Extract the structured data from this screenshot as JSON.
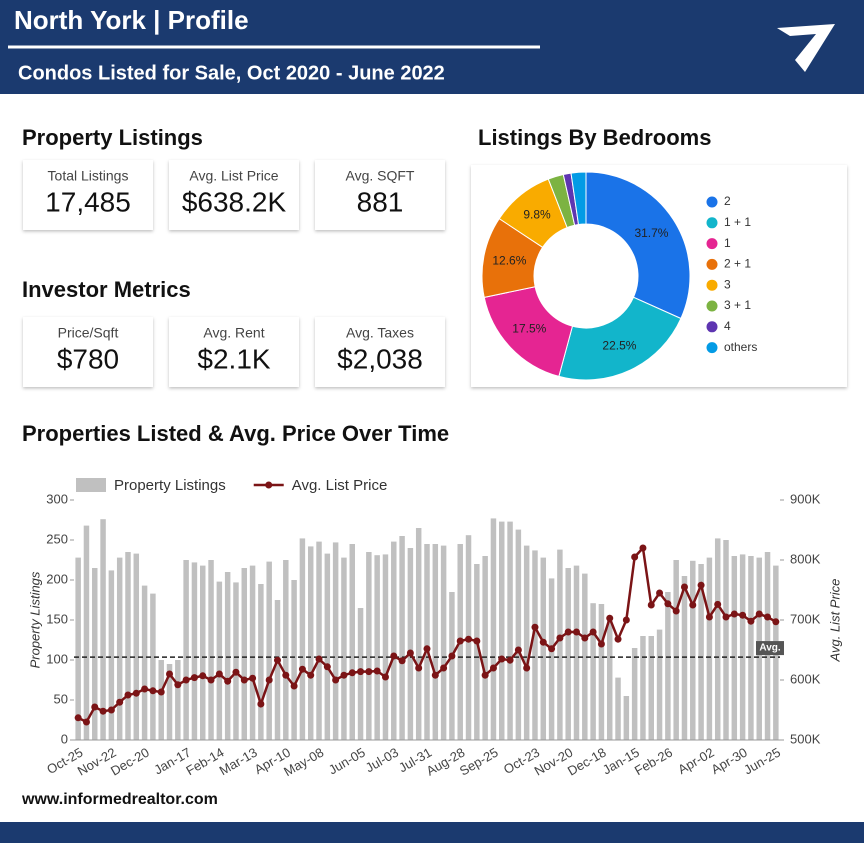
{
  "header": {
    "title": "North York | Profile",
    "subtitle": "Condos Listed for Sale, Oct 2020 -  June 2022"
  },
  "property_listings": {
    "heading": "Property Listings",
    "cards": [
      {
        "label": "Total Listings",
        "value": "17,485"
      },
      {
        "label": "Avg. List Price",
        "value": "$638.2K"
      },
      {
        "label": "Avg. SQFT",
        "value": "881"
      }
    ]
  },
  "investor_metrics": {
    "heading": "Investor Metrics",
    "cards": [
      {
        "label": "Price/Sqft",
        "value": "$780"
      },
      {
        "label": "Avg. Rent",
        "value": "$2.1K"
      },
      {
        "label": "Avg. Taxes",
        "value": "$2,038"
      }
    ]
  },
  "footer": "www.informedrealtor.com",
  "chart_data": [
    {
      "type": "pie",
      "title": "Listings By Bedrooms",
      "donut": true,
      "categories": [
        "2",
        "1 + 1",
        "1",
        "2 + 1",
        "3",
        "3 + 1",
        "4",
        "others"
      ],
      "values": [
        31.7,
        22.5,
        17.5,
        12.6,
        9.8,
        2.4,
        1.2,
        2.3
      ],
      "value_labels": [
        "31.7%",
        "22.5%",
        "17.5%",
        "12.6%",
        "9.8%",
        null,
        null,
        null
      ],
      "colors": [
        "#1a73e8",
        "#12b5cb",
        "#e52592",
        "#e8710a",
        "#f9ab00",
        "#7cb342",
        "#5e35b1",
        "#039be5"
      ],
      "legend": "right"
    },
    {
      "type": "bar",
      "title": "Properties Listed & Avg. Price Over Time",
      "categories": [
        "Oct-25",
        null,
        null,
        null,
        "Nov-22",
        null,
        null,
        null,
        "Dec-20",
        null,
        null,
        null,
        null,
        "Jan-17",
        null,
        null,
        null,
        "Feb-14",
        null,
        null,
        null,
        "Mar-13",
        null,
        null,
        null,
        "Apr-10",
        null,
        null,
        null,
        "May-08",
        null,
        null,
        null,
        null,
        "Jun-05",
        null,
        null,
        null,
        "Jul-03",
        null,
        null,
        null,
        "Jul-31",
        null,
        null,
        null,
        "Aug-28",
        null,
        null,
        null,
        "Sep-25",
        null,
        null,
        null,
        null,
        "Oct-23",
        null,
        null,
        null,
        "Nov-20",
        null,
        null,
        null,
        "Dec-18",
        null,
        null,
        null,
        "Jan-15",
        null,
        null,
        null,
        "Feb-26",
        null,
        null,
        null,
        null,
        "Apr-02",
        null,
        null,
        null,
        "Apr-30",
        null,
        null,
        null,
        "Jun-25"
      ],
      "series": [
        {
          "name": "Property Listings",
          "type": "bar",
          "color": "#c0c0c0",
          "values": [
            228,
            268,
            215,
            276,
            212,
            228,
            235,
            233,
            193,
            183,
            100,
            95,
            100,
            225,
            222,
            218,
            225,
            198,
            210,
            197,
            215,
            218,
            195,
            223,
            175,
            225,
            200,
            252,
            242,
            248,
            233,
            247,
            228,
            245,
            165,
            235,
            231,
            232,
            248,
            255,
            240,
            265,
            245,
            245,
            243,
            185,
            245,
            256,
            220,
            230,
            277,
            273,
            273,
            263,
            243,
            237,
            228,
            202,
            238,
            215,
            218,
            208,
            171,
            170,
            150,
            78,
            55,
            115,
            130,
            130,
            138,
            185,
            225,
            205,
            224,
            220,
            228,
            252,
            250,
            230,
            232,
            230,
            228,
            235,
            218
          ]
        },
        {
          "name": "Avg. List Price",
          "type": "line",
          "axis": "y2",
          "color": "#7b1416",
          "values": [
            537000,
            530000,
            555000,
            548000,
            550000,
            563000,
            575000,
            578000,
            585000,
            582000,
            580000,
            610000,
            592000,
            600000,
            604000,
            607000,
            600000,
            610000,
            598000,
            613000,
            600000,
            603000,
            560000,
            600000,
            633000,
            608000,
            590000,
            618000,
            608000,
            635000,
            622000,
            600000,
            608000,
            612000,
            614000,
            614000,
            615000,
            605000,
            640000,
            632000,
            645000,
            620000,
            652000,
            608000,
            620000,
            640000,
            665000,
            668000,
            665000,
            608000,
            620000,
            635000,
            633000,
            650000,
            620000,
            688000,
            663000,
            652000,
            670000,
            680000,
            680000,
            670000,
            680000,
            660000,
            703000,
            668000,
            700000,
            805000,
            820000,
            725000,
            745000,
            727000,
            715000,
            755000,
            725000,
            758000,
            705000,
            726000,
            705000,
            710000,
            708000,
            698000,
            710000,
            705000,
            697000
          ]
        }
      ],
      "ylim": [
        0,
        300
      ],
      "yticks": [
        0,
        50,
        100,
        150,
        200,
        250,
        300
      ],
      "ylabel": "Property Listings",
      "y2lim": [
        500000,
        900000
      ],
      "y2ticks": [
        {
          "value": 500000,
          "label": "500K"
        },
        {
          "value": 600000,
          "label": "600K"
        },
        {
          "value": 700000,
          "label": "700K"
        },
        {
          "value": 800000,
          "label": "800K"
        },
        {
          "value": 900000,
          "label": "900K"
        }
      ],
      "y2label": "Avg. List Price",
      "reference_line": {
        "value": 638200,
        "axis": "y2",
        "label": "Avg."
      },
      "legend": "top",
      "grid": false
    }
  ]
}
